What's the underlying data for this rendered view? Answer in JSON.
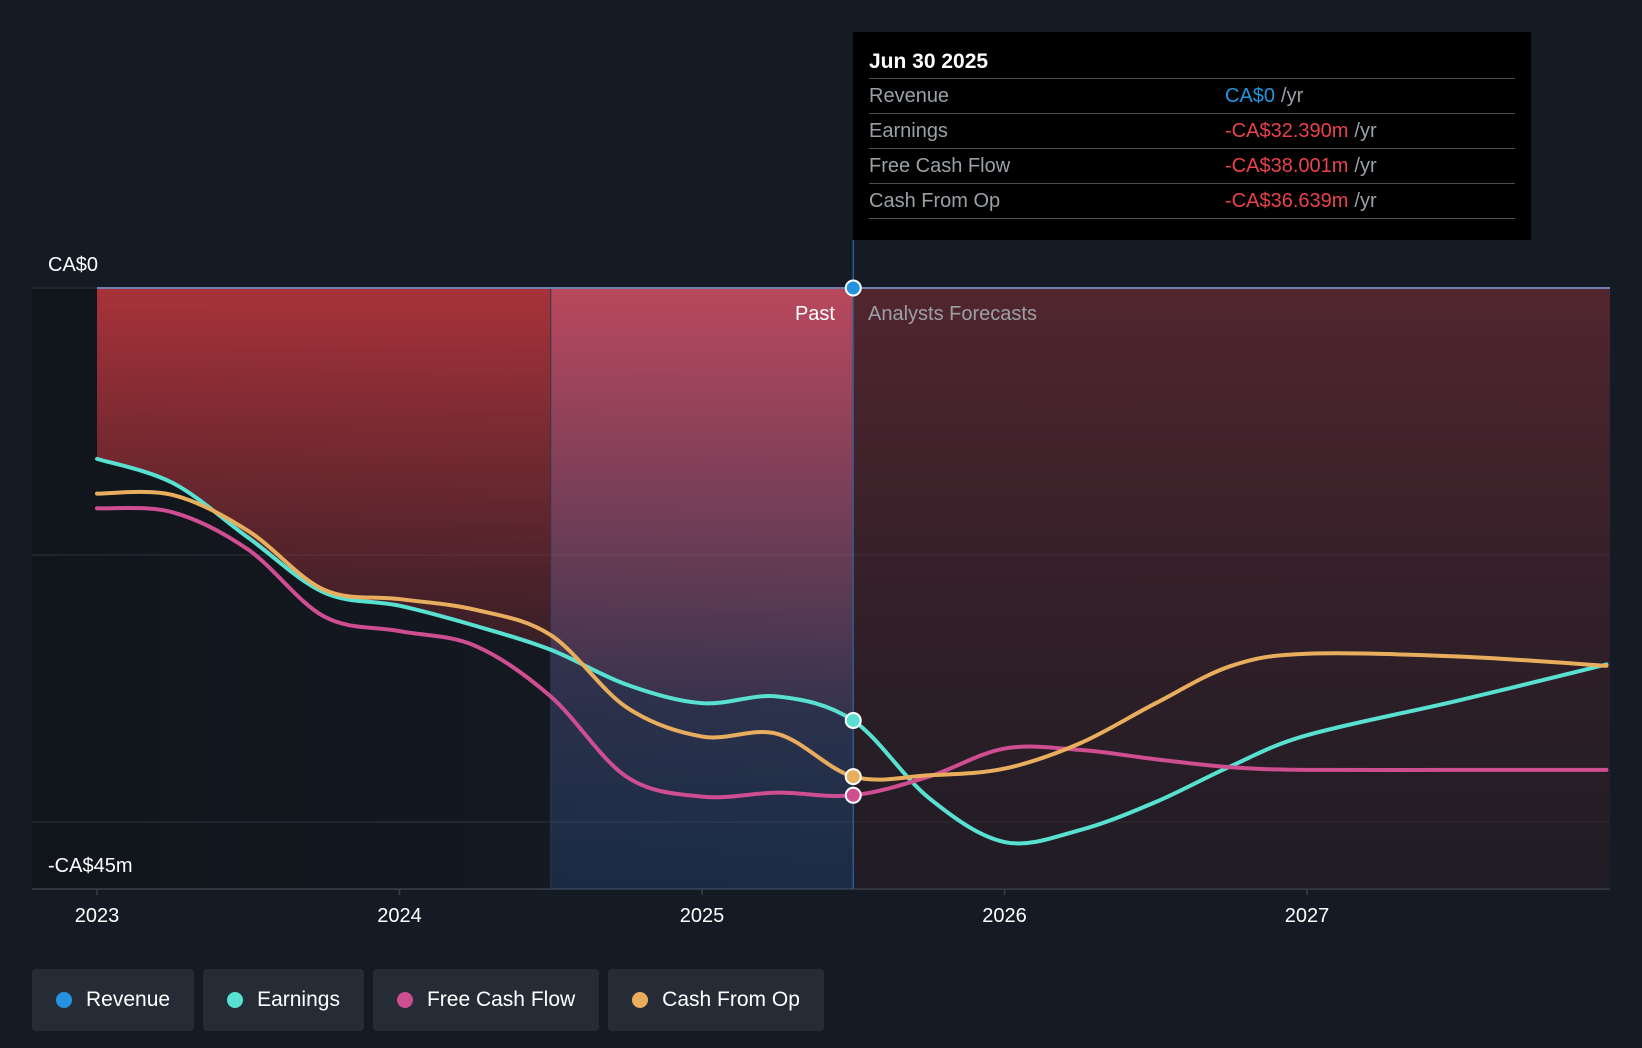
{
  "chart_data": {
    "type": "line",
    "y_axis": {
      "top_label": "CA$0",
      "bottom_label": "-CA$45m",
      "ylim": [
        -45,
        0
      ],
      "gridlines": [
        0,
        -20,
        -40
      ]
    },
    "x_axis": {
      "ticks": [
        "2023",
        "2024",
        "2025",
        "2026",
        "2027"
      ]
    },
    "regions": {
      "past_label": "Past",
      "forecast_label": "Analysts Forecasts",
      "divider_date": 2025.5
    },
    "series": [
      {
        "name": "Revenue",
        "color": "#2394df",
        "points": [
          [
            2023.0,
            0
          ],
          [
            2024.5,
            0
          ],
          [
            2025.5,
            0
          ],
          [
            2026.5,
            0
          ],
          [
            2027.99,
            0
          ]
        ]
      },
      {
        "name": "Earnings",
        "color": "#58e1d1",
        "points": [
          [
            2023.0,
            -12.8
          ],
          [
            2023.25,
            -14.6
          ],
          [
            2023.5,
            -18.7
          ],
          [
            2023.75,
            -22.8
          ],
          [
            2024.0,
            -23.8
          ],
          [
            2024.25,
            -25.3
          ],
          [
            2024.5,
            -27.1
          ],
          [
            2024.75,
            -29.7
          ],
          [
            2025.0,
            -31.1
          ],
          [
            2025.25,
            -30.6
          ],
          [
            2025.5,
            -32.4
          ],
          [
            2025.75,
            -38.2
          ],
          [
            2026.0,
            -41.5
          ],
          [
            2026.25,
            -40.6
          ],
          [
            2026.5,
            -38.5
          ],
          [
            2026.75,
            -35.8
          ],
          [
            2027.0,
            -33.5
          ],
          [
            2027.5,
            -30.9
          ],
          [
            2027.99,
            -28.2
          ]
        ]
      },
      {
        "name": "Free Cash Flow",
        "color": "#cf4d91",
        "points": [
          [
            2023.0,
            -16.5
          ],
          [
            2023.25,
            -16.8
          ],
          [
            2023.5,
            -19.6
          ],
          [
            2023.75,
            -24.6
          ],
          [
            2024.0,
            -25.7
          ],
          [
            2024.25,
            -26.8
          ],
          [
            2024.5,
            -30.6
          ],
          [
            2024.75,
            -36.6
          ],
          [
            2025.0,
            -38.1
          ],
          [
            2025.25,
            -37.8
          ],
          [
            2025.5,
            -38.0
          ],
          [
            2025.75,
            -36.6
          ],
          [
            2026.0,
            -34.5
          ],
          [
            2026.25,
            -34.6
          ],
          [
            2026.5,
            -35.3
          ],
          [
            2026.75,
            -35.9
          ],
          [
            2027.0,
            -36.1
          ],
          [
            2027.5,
            -36.1
          ],
          [
            2027.99,
            -36.1
          ]
        ]
      },
      {
        "name": "Cash From Op",
        "color": "#e9ae5d",
        "points": [
          [
            2023.0,
            -15.4
          ],
          [
            2023.25,
            -15.5
          ],
          [
            2023.5,
            -18.2
          ],
          [
            2023.75,
            -22.6
          ],
          [
            2024.0,
            -23.3
          ],
          [
            2024.25,
            -24.1
          ],
          [
            2024.5,
            -26.0
          ],
          [
            2024.75,
            -31.4
          ],
          [
            2025.0,
            -33.6
          ],
          [
            2025.25,
            -33.4
          ],
          [
            2025.5,
            -36.6
          ],
          [
            2025.75,
            -36.5
          ],
          [
            2026.0,
            -36.0
          ],
          [
            2026.25,
            -34.1
          ],
          [
            2026.5,
            -31.1
          ],
          [
            2026.75,
            -28.3
          ],
          [
            2027.0,
            -27.4
          ],
          [
            2027.5,
            -27.6
          ],
          [
            2027.99,
            -28.3
          ]
        ]
      }
    ],
    "highlight_date": 2025.5
  },
  "tooltip": {
    "date": "Jun 30 2025",
    "rows": [
      {
        "name": "Revenue",
        "value": "CA$0",
        "unit": "/yr",
        "color": "#2394df"
      },
      {
        "name": "Earnings",
        "value": "-CA$32.390m",
        "unit": "/yr",
        "color": "#e8434d"
      },
      {
        "name": "Free Cash Flow",
        "value": "-CA$38.001m",
        "unit": "/yr",
        "color": "#e8434d"
      },
      {
        "name": "Cash From Op",
        "value": "-CA$36.639m",
        "unit": "/yr",
        "color": "#e8434d"
      }
    ]
  },
  "legend": [
    {
      "label": "Revenue",
      "color": "#2394df"
    },
    {
      "label": "Earnings",
      "color": "#58e1d1"
    },
    {
      "label": "Free Cash Flow",
      "color": "#cf4d91"
    },
    {
      "label": "Cash From Op",
      "color": "#e9ae5d"
    }
  ]
}
